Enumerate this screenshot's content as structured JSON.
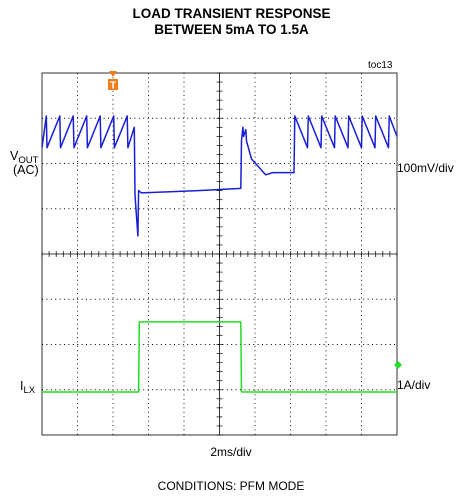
{
  "chart_data": {
    "type": "line",
    "title": [
      "LOAD TRANSIENT RESPONSE",
      "BETWEEN 5mA TO 1.5A"
    ],
    "figure_id": "toc13",
    "trigger_marker": "T",
    "xlabel": "2ms/div",
    "conditions": "CONDITIONS:  PFM MODE",
    "grid": true,
    "grid_divisions": {
      "x": 10,
      "y": 8
    },
    "x_unit": "div",
    "xlim": [
      0,
      10
    ],
    "ylim": [
      0,
      8
    ],
    "colors": {
      "vout": "#1a1fd6",
      "ilx": "#22dd22",
      "trigger": "#f07d1a",
      "grid": "#000000"
    },
    "series": [
      {
        "name": "VOUT (AC)",
        "label_main": "V",
        "label_sub": "OUT",
        "label_line2": "(AC)",
        "scale": "100mV/div",
        "color": "#1a1fd6",
        "x": [
          0,
          0.12,
          0.14,
          0.5,
          0.52,
          0.88,
          0.9,
          1.26,
          1.28,
          1.64,
          1.66,
          2.02,
          2.04,
          2.4,
          2.42,
          2.6,
          2.62,
          2.7,
          2.72,
          2.8,
          4.4,
          5.6,
          5.62,
          5.66,
          5.68,
          5.74,
          5.76,
          5.9,
          6.3,
          6.5,
          7.1,
          7.12,
          7.48,
          7.5,
          7.86,
          7.88,
          8.24,
          8.26,
          8.62,
          8.64,
          9.0,
          9.02,
          9.38,
          9.4,
          9.76,
          9.78,
          10
        ],
        "y": [
          6.35,
          7.05,
          6.35,
          7.05,
          6.35,
          7.05,
          6.35,
          7.05,
          6.35,
          7.05,
          6.35,
          7.05,
          6.35,
          7.05,
          6.35,
          6.8,
          5.3,
          4.4,
          5.4,
          5.35,
          5.4,
          5.45,
          6.5,
          6.8,
          6.6,
          6.75,
          6.5,
          6.1,
          5.75,
          5.8,
          5.8,
          7.05,
          6.35,
          7.05,
          6.35,
          7.05,
          6.35,
          7.05,
          6.35,
          7.05,
          6.35,
          7.05,
          6.35,
          7.05,
          6.35,
          7.05,
          6.6
        ]
      },
      {
        "name": "ILX",
        "label_main": "I",
        "label_sub": "LX",
        "scale": "1A/div",
        "color": "#22dd22",
        "x": [
          0,
          2.72,
          2.74,
          5.6,
          5.62,
          10
        ],
        "y": [
          0.95,
          0.95,
          2.5,
          2.5,
          0.95,
          0.95
        ]
      }
    ]
  }
}
